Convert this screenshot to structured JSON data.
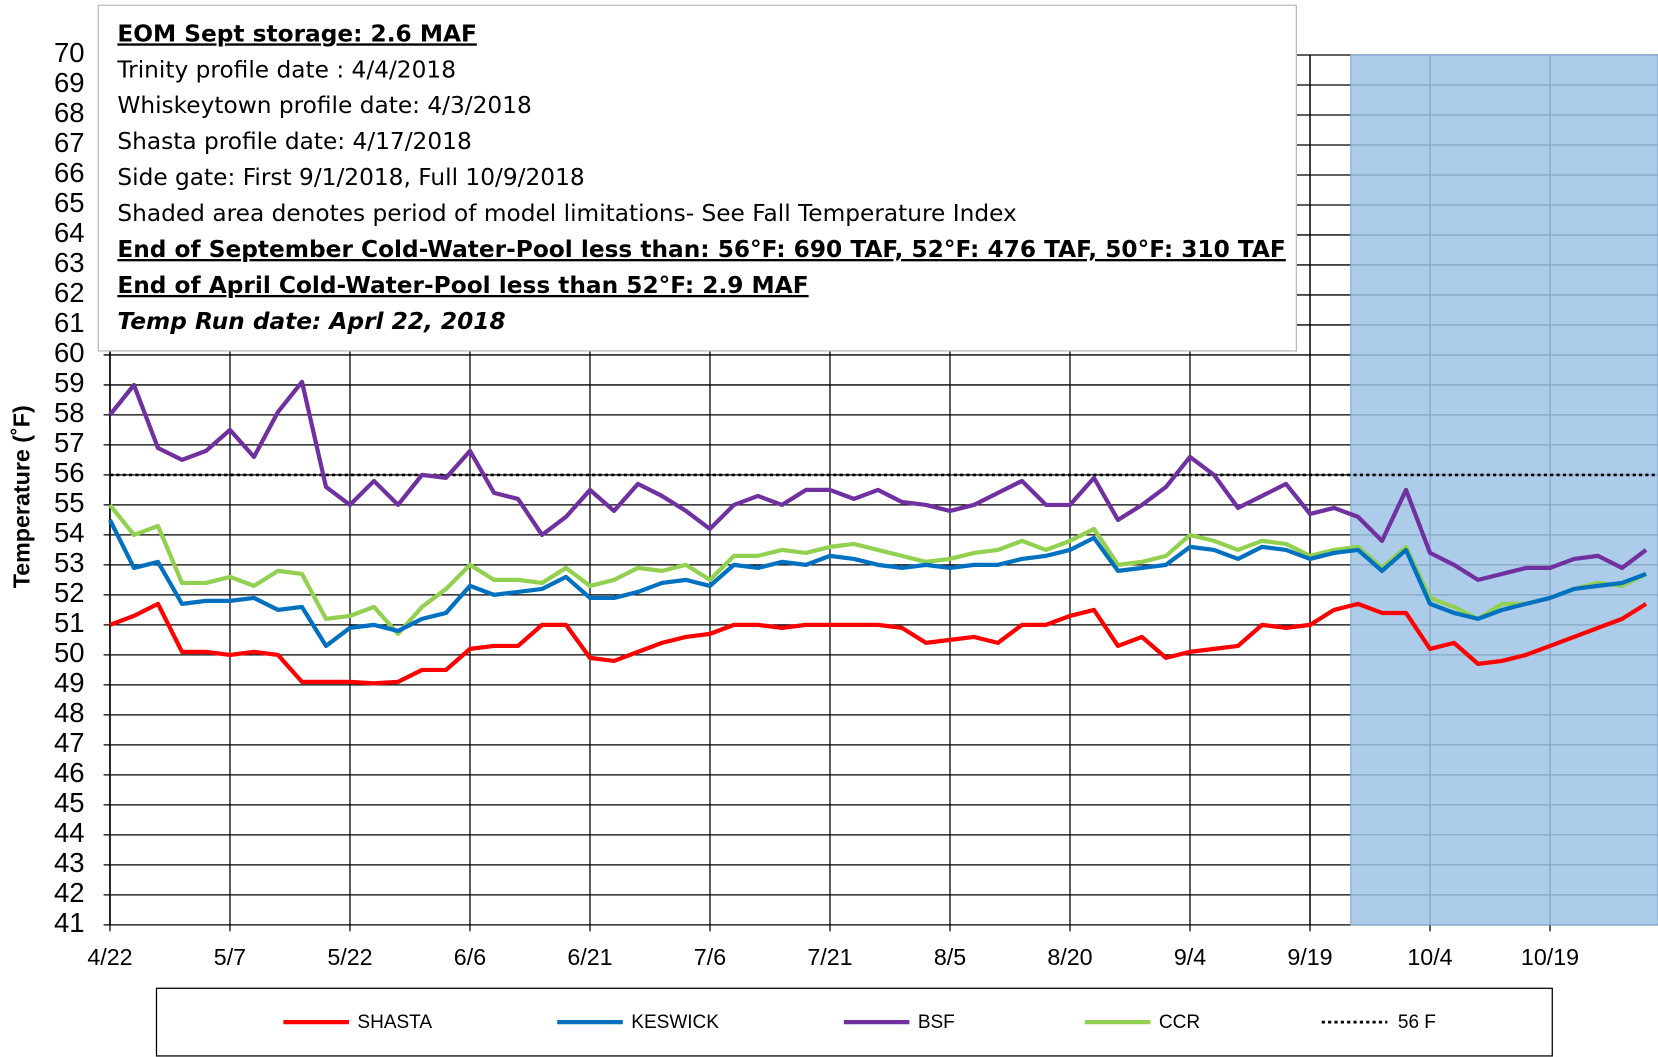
{
  "chart_data": {
    "type": "line",
    "y_label": "Temperature (˚F)",
    "annotations": [
      "EOM Sept storage: 2.6  MAF",
      "Trinity profile date : 4/4/2018",
      "Whiskeytown profile date: 4/3/2018",
      "Shasta profile date: 4/17/2018",
      "Side gate: First 9/1/2018, Full 10/9/2018",
      "Shaded area denotes period of model limitations- See Fall Temperature Index",
      "End of September Cold-Water-Pool less than: 56°F: 690 TAF, 52°F: 476 TAF, 50°F: 310 TAF",
      "End of April Cold-Water-Pool less than 52°F: 2.9 MAF",
      "Temp Run date: Aprl 22, 2018"
    ],
    "categories": [
      "4/22",
      null,
      null,
      null,
      null,
      "5/7",
      null,
      null,
      null,
      null,
      "5/22",
      null,
      null,
      null,
      null,
      "6/6",
      null,
      null,
      null,
      null,
      "6/21",
      null,
      null,
      null,
      null,
      "7/6",
      null,
      null,
      null,
      null,
      "7/21",
      null,
      null,
      null,
      null,
      "8/5",
      null,
      null,
      null,
      null,
      "8/20",
      null,
      null,
      null,
      null,
      "9/4",
      null,
      null,
      null,
      null,
      "9/19",
      null,
      null,
      null,
      null,
      "10/4",
      null,
      null,
      null,
      null,
      "10/19",
      null,
      null,
      null,
      null
    ],
    "series": [
      {
        "name": "SHASTA",
        "color": "#ff0000",
        "values": [
          51.0,
          51.3,
          51.7,
          50.1,
          50.1,
          50.0,
          50.1,
          50.0,
          49.1,
          49.1,
          49.1,
          49.05,
          49.1,
          49.5,
          49.5,
          50.2,
          50.3,
          50.3,
          51.0,
          51.0,
          49.9,
          49.8,
          50.1,
          50.4,
          50.6,
          50.7,
          51.0,
          51.0,
          50.9,
          51.0,
          51.0,
          51.0,
          51.0,
          50.9,
          50.4,
          50.5,
          50.6,
          50.4,
          51.0,
          51.0,
          51.3,
          51.5,
          50.3,
          50.6,
          49.9,
          50.1,
          50.2,
          50.3,
          51.0,
          50.9,
          51.0,
          51.5,
          51.7,
          51.4,
          51.4,
          50.2,
          50.4,
          49.7,
          49.8,
          50.0,
          50.3,
          50.6,
          50.9,
          51.2,
          51.7
        ]
      },
      {
        "name": "KESWICK",
        "color": "#0070c0",
        "values": [
          54.5,
          52.9,
          53.1,
          51.7,
          51.8,
          51.8,
          51.9,
          51.5,
          51.6,
          50.3,
          50.9,
          51.0,
          50.8,
          51.2,
          51.4,
          52.3,
          52.0,
          52.1,
          52.2,
          52.6,
          51.9,
          51.9,
          52.1,
          52.4,
          52.5,
          52.3,
          53.0,
          52.9,
          53.1,
          53.0,
          53.3,
          53.2,
          53.0,
          52.9,
          53.0,
          52.9,
          53.0,
          53.0,
          53.2,
          53.3,
          53.5,
          53.9,
          52.8,
          52.9,
          53.0,
          53.6,
          53.5,
          53.2,
          53.6,
          53.5,
          53.2,
          53.4,
          53.5,
          52.8,
          53.5,
          51.7,
          51.4,
          51.2,
          51.5,
          51.7,
          51.9,
          52.2,
          52.3,
          52.4,
          52.7
        ]
      },
      {
        "name": "BSF",
        "color": "#7030a0",
        "values": [
          58.0,
          59.0,
          56.9,
          56.5,
          56.8,
          57.5,
          56.6,
          58.1,
          59.1,
          55.6,
          55.0,
          55.8,
          55.0,
          56.0,
          55.9,
          56.8,
          55.4,
          55.2,
          54.0,
          54.6,
          55.5,
          54.8,
          55.7,
          55.3,
          54.8,
          54.2,
          55.0,
          55.3,
          55.0,
          55.5,
          55.5,
          55.2,
          55.5,
          55.1,
          55.0,
          54.8,
          55.0,
          55.4,
          55.8,
          55.0,
          55.0,
          55.9,
          54.5,
          55.0,
          55.6,
          56.6,
          56.0,
          54.9,
          55.3,
          55.7,
          54.7,
          54.9,
          54.6,
          53.8,
          55.5,
          53.4,
          53.0,
          52.5,
          52.7,
          52.9,
          52.9,
          53.2,
          53.3,
          52.9,
          53.5
        ]
      },
      {
        "name": "CCR",
        "color": "#92d050",
        "values": [
          55.0,
          54.0,
          54.3,
          52.4,
          52.4,
          52.6,
          52.3,
          52.8,
          52.7,
          51.2,
          51.3,
          51.6,
          50.7,
          51.6,
          52.2,
          53.0,
          52.5,
          52.5,
          52.4,
          52.9,
          52.3,
          52.5,
          52.9,
          52.8,
          53.0,
          52.5,
          53.3,
          53.3,
          53.5,
          53.4,
          53.6,
          53.7,
          53.5,
          53.3,
          53.1,
          53.2,
          53.4,
          53.5,
          53.8,
          53.5,
          53.8,
          54.2,
          53.0,
          53.1,
          53.3,
          54.0,
          53.8,
          53.5,
          53.8,
          53.7,
          53.3,
          53.5,
          53.6,
          52.9,
          53.6,
          51.9,
          51.6,
          51.2,
          51.7,
          51.7,
          51.9,
          52.2,
          52.4,
          52.3,
          52.7
        ]
      }
    ],
    "reference_line": {
      "name": "56 F",
      "value": 56,
      "color": "#000000"
    },
    "shade_start": 51.7,
    "shade_color": "#9dc3e6",
    "ylim": [
      41,
      70
    ],
    "yticks": [
      41,
      42,
      43,
      44,
      45,
      46,
      47,
      48,
      49,
      50,
      51,
      52,
      53,
      54,
      55,
      56,
      57,
      58,
      59,
      60,
      61,
      62,
      63,
      64,
      65,
      66,
      67,
      68,
      69,
      70
    ],
    "grid": true,
    "legend": "bottom"
  }
}
